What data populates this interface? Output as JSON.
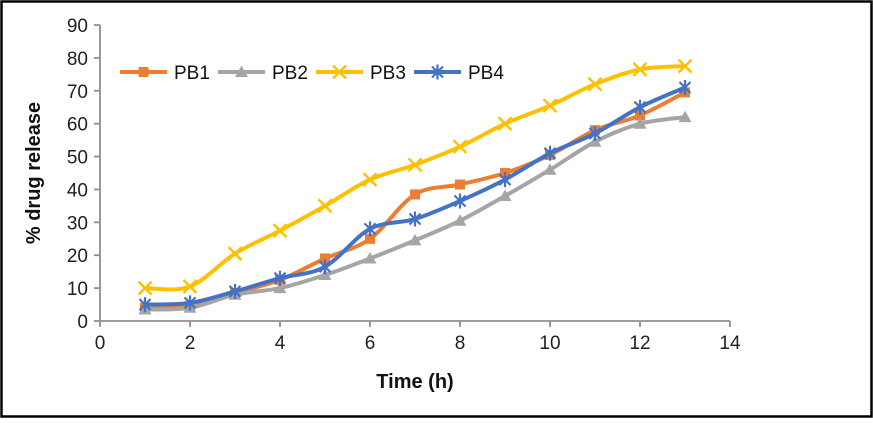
{
  "figure": {
    "background": "#ffffff",
    "border_color": "#000000"
  },
  "chart_data": {
    "type": "line",
    "title": "",
    "xlabel": "Time (h)",
    "ylabel": "% drug release",
    "x": [
      1,
      2,
      3,
      4,
      5,
      6,
      7,
      8,
      9,
      10,
      11,
      12,
      13
    ],
    "series": [
      {
        "name": "PB1",
        "color": "#ED7D31",
        "marker": "square",
        "values": [
          4,
          4.5,
          8.5,
          12.5,
          19,
          25,
          38.5,
          41.5,
          45,
          50.5,
          58,
          62.5,
          69.5
        ]
      },
      {
        "name": "PB2",
        "color": "#A5A5A5",
        "marker": "triangle",
        "values": [
          3.5,
          4,
          8,
          10,
          14,
          19,
          24.5,
          30.5,
          38,
          46,
          54.5,
          60,
          62
        ]
      },
      {
        "name": "PB3",
        "color": "#FFC000",
        "marker": "x",
        "values": [
          10,
          10.5,
          20.5,
          27.5,
          35,
          43,
          47.5,
          53,
          60,
          65.5,
          72,
          76.5,
          77.5
        ]
      },
      {
        "name": "PB4",
        "color": "#4472C4",
        "marker": "asterisk",
        "values": [
          5,
          5.5,
          9,
          13,
          16.5,
          28,
          31,
          36.5,
          43,
          51,
          57,
          65,
          71
        ]
      }
    ],
    "xlim": [
      0,
      14
    ],
    "ylim": [
      0,
      90
    ],
    "xtick_step": 2,
    "ytick_step": 10,
    "grid": false,
    "smooth_lines": true,
    "legend_position": "top-inside",
    "axis_color": "#8e8e8e",
    "tick_label_color": "#1f1f1f"
  }
}
